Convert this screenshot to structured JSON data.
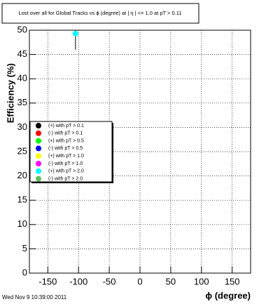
{
  "chart_data": {
    "type": "scatter",
    "title": "Lost over all for Global Tracks vs ϕ (degree) at | η | <= 1.0 at pT > 0.11",
    "x_label": "ϕ (degree)",
    "y_label": "Efficiency (%)",
    "footer": "Wed Nov  9 10:39:00 2011",
    "xlim": [
      -180,
      180
    ],
    "ylim": [
      0,
      50
    ],
    "xticks": [
      -150,
      -100,
      -50,
      0,
      50,
      100,
      150
    ],
    "yticks": [
      0,
      5,
      10,
      15,
      20,
      25,
      30,
      35,
      40,
      45,
      50
    ],
    "grid": true,
    "series": [
      {
        "name": "(+) with pT > 0.1",
        "color": "#000000",
        "x": [],
        "values": [],
        "errors": []
      },
      {
        "name": "(-) with pT > 0.1",
        "color": "#ff0000",
        "x": [],
        "values": [],
        "errors": []
      },
      {
        "name": "(+) with pT > 0.5",
        "color": "#00ff00",
        "x": [],
        "values": [],
        "errors": []
      },
      {
        "name": "(-) with pT > 0.5",
        "color": "#0000ff",
        "x": [],
        "values": [],
        "errors": []
      },
      {
        "name": "(+) with pT > 1.0",
        "color": "#ffff00",
        "x": [],
        "values": [],
        "errors": []
      },
      {
        "name": "(-) with pT > 1.0",
        "color": "#ff00ff",
        "x": [],
        "values": [],
        "errors": []
      },
      {
        "name": "(+) with pT > 2.0",
        "color": "#00ffff",
        "x": [
          -105
        ],
        "values": [
          49.3
        ],
        "errors": [
          3.3
        ]
      },
      {
        "name": "(-) with pT > 2.0",
        "color": "#5fbf5f",
        "x": [],
        "values": [],
        "errors": []
      }
    ]
  }
}
